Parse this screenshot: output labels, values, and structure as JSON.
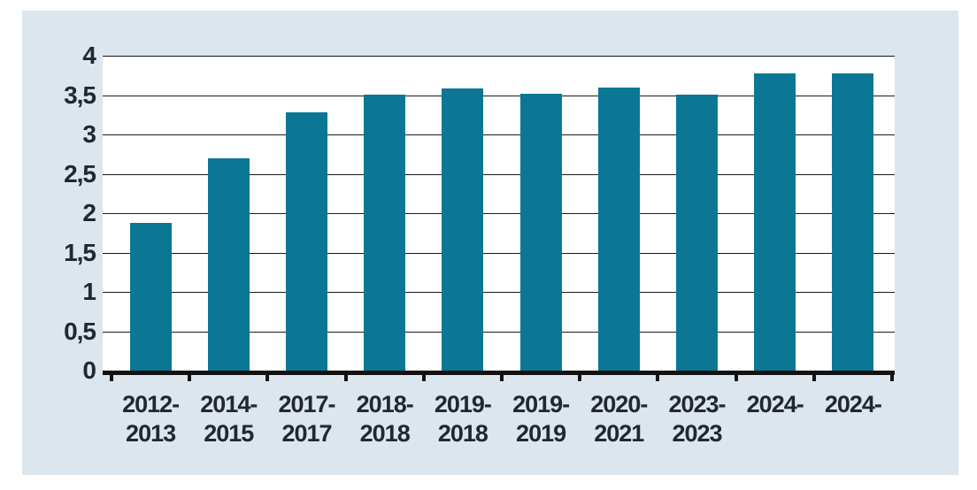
{
  "chart_data": {
    "type": "bar",
    "categories": [
      "2012-2013",
      "2014-2015",
      "2017-2017",
      "2018-2018",
      "2019-2018",
      "2019-2019",
      "2020-2021",
      "2023-2023",
      "2024-",
      "2024-"
    ],
    "category_label_lines": [
      [
        "2012-",
        "2013"
      ],
      [
        "2014-",
        "2015"
      ],
      [
        "2017-",
        "2017"
      ],
      [
        "2018-",
        "2018"
      ],
      [
        "2019-",
        "2018"
      ],
      [
        "2019-",
        "2019"
      ],
      [
        "2020-",
        "2021"
      ],
      [
        "2023-",
        "2023"
      ],
      [
        "2024-"
      ],
      [
        "2024-"
      ]
    ],
    "values": [
      1.88,
      2.7,
      3.28,
      3.5,
      3.58,
      3.52,
      3.6,
      3.5,
      3.78,
      3.78
    ],
    "y_ticks": [
      "0",
      "0,5",
      "1",
      "1,5",
      "2",
      "2,5",
      "3",
      "3,5",
      "4"
    ],
    "y_tick_values": [
      0,
      0.5,
      1,
      1.5,
      2,
      2.5,
      3,
      3.5,
      4
    ],
    "ylim": [
      0,
      4
    ],
    "grid": true,
    "legend": false,
    "title": "",
    "xlabel": "",
    "ylabel": "",
    "colors": {
      "bar": "#0c7794",
      "panel_background": "#dce6ee",
      "plot_background": "#ffffff",
      "gridline": "#1a1a1a",
      "axis": "#121212",
      "text": "#23272e",
      "page_background": "#ffffff"
    }
  }
}
